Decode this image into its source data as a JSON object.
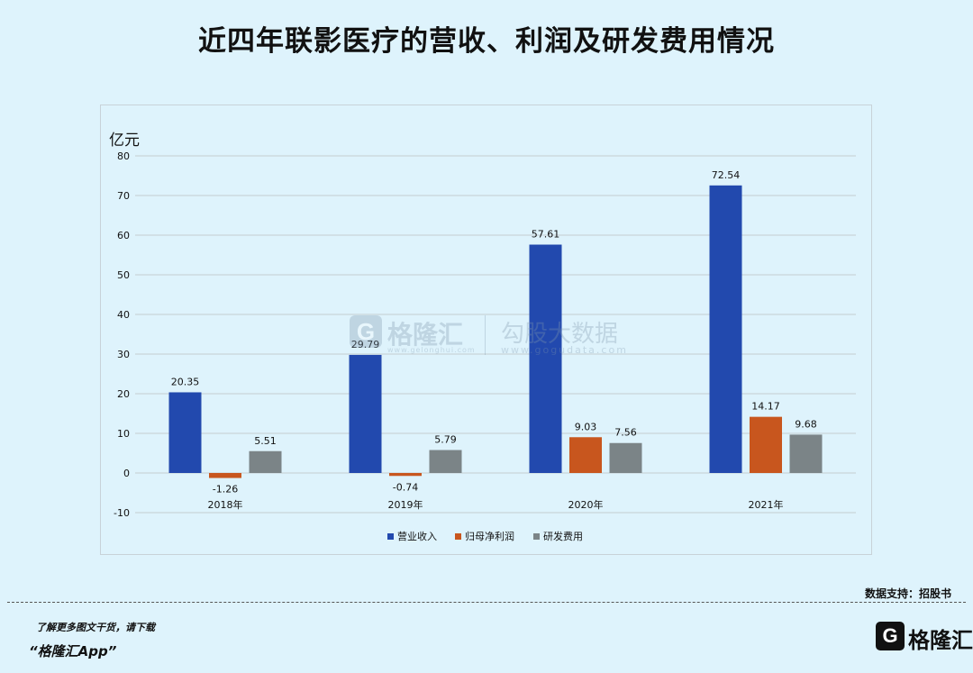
{
  "page": {
    "title": "近四年联影医疗的营收、利润及研发费用情况",
    "source": "数据支持：招股书",
    "promo_line1": "了解更多图文干货，请下载",
    "promo_line2": "“格隆汇App”",
    "brand_logo_glyph": "G",
    "brand_name": "格隆汇"
  },
  "watermark": {
    "logo_glyph": "G",
    "text1": "格隆汇",
    "sub1": "www.gelonghui.com",
    "text2": "勾股大数据",
    "sub2": "www.gogudata.com"
  },
  "chart_data": {
    "type": "bar",
    "title": "",
    "xlabel": "",
    "ylabel": "亿元",
    "ylim": [
      -10,
      80
    ],
    "yticks": [
      -10,
      0,
      10,
      20,
      30,
      40,
      50,
      60,
      70,
      80
    ],
    "grid": true,
    "legend_position": "bottom",
    "categories": [
      "2018年",
      "2019年",
      "2020年",
      "2021年"
    ],
    "series": [
      {
        "name": "营业收入",
        "color": "#2249ae",
        "values": [
          20.35,
          29.79,
          57.61,
          72.54
        ],
        "labels": [
          "20.35",
          "29.79",
          "57.61",
          "72.54"
        ]
      },
      {
        "name": "归母净利润",
        "color": "#c8561e",
        "values": [
          -1.26,
          -0.74,
          9.03,
          14.17
        ],
        "labels": [
          "-1.26",
          "-0.74",
          "9.03",
          "14.17"
        ]
      },
      {
        "name": "研发费用",
        "color": "#7b8487",
        "values": [
          5.51,
          5.79,
          7.56,
          9.68
        ],
        "labels": [
          "5.51",
          "5.79",
          "7.56",
          "9.68"
        ]
      }
    ]
  }
}
